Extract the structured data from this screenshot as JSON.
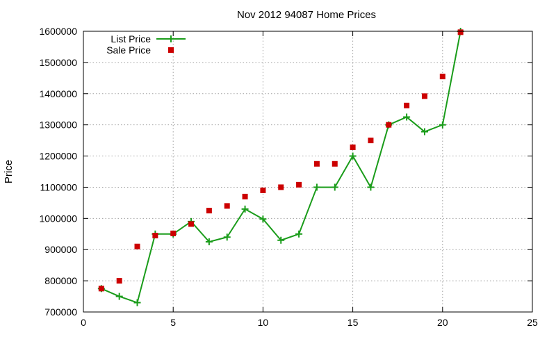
{
  "chart_data": {
    "type": "line",
    "title": "Nov 2012 94087 Home Prices",
    "xlabel": "",
    "ylabel": "Price",
    "xlim": [
      0,
      25
    ],
    "ylim": [
      700000,
      1600000
    ],
    "xticks": [
      0,
      5,
      10,
      15,
      20,
      25
    ],
    "yticks": [
      700000,
      800000,
      900000,
      1000000,
      1100000,
      1200000,
      1300000,
      1400000,
      1500000,
      1600000
    ],
    "grid": true,
    "legend_position": "top-left",
    "series": [
      {
        "name": "List Price",
        "style": "line-with-plus-markers",
        "color": "#1a9c1a",
        "x": [
          1,
          2,
          3,
          4,
          5,
          6,
          7,
          8,
          9,
          10,
          11,
          12,
          13,
          14,
          15,
          16,
          17,
          18,
          19,
          20,
          21
        ],
        "y": [
          775000,
          750000,
          730000,
          950000,
          950000,
          990000,
          925000,
          940000,
          1030000,
          998000,
          930000,
          950000,
          1100000,
          1100000,
          1200000,
          1100000,
          1300000,
          1325000,
          1278000,
          1300000,
          1600000
        ]
      },
      {
        "name": "Sale Price",
        "style": "square-markers",
        "color": "#cc0000",
        "x": [
          1,
          2,
          3,
          4,
          5,
          6,
          7,
          8,
          9,
          10,
          11,
          12,
          13,
          14,
          15,
          16,
          17,
          18,
          19,
          20,
          21
        ],
        "y": [
          775000,
          800000,
          910000,
          945000,
          952000,
          982000,
          1025000,
          1040000,
          1070000,
          1090000,
          1100000,
          1108000,
          1175000,
          1175000,
          1228000,
          1250000,
          1300000,
          1362000,
          1392000,
          1455000,
          1597000
        ]
      }
    ]
  }
}
